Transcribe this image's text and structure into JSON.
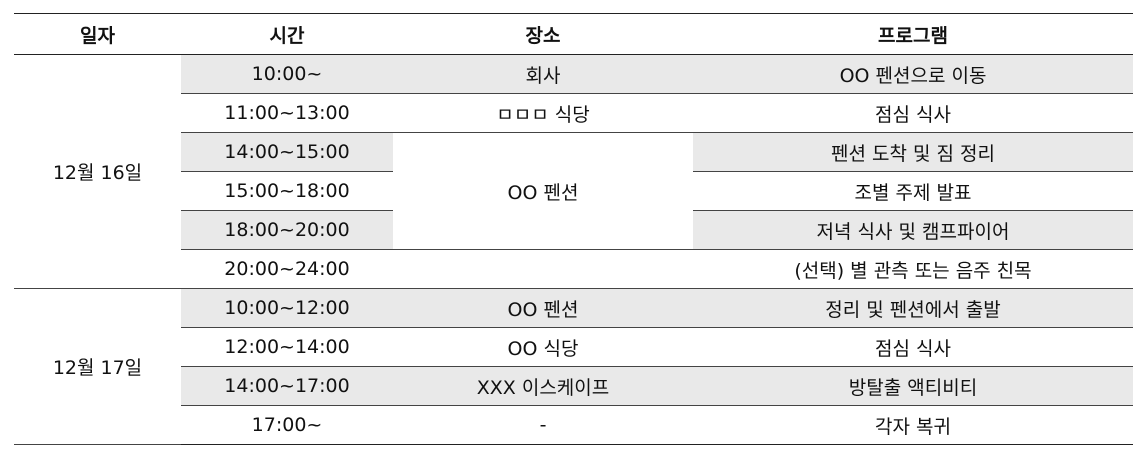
{
  "headers": {
    "date": "일자",
    "time": "시간",
    "place": "장소",
    "program": "프로그램"
  },
  "groups": [
    {
      "date": "12월 16일",
      "rows": [
        {
          "time": "10:00~",
          "place": "회사",
          "program": "OO 펜션으로 이동"
        },
        {
          "time": "11:00~13:00",
          "place": "ㅁㅁㅁ 식당",
          "program": "점심 식사"
        },
        {
          "time": "14:00~15:00",
          "place": "OO 펜션",
          "program": "펜션 도착 및 짐 정리"
        },
        {
          "time": "15:00~18:00",
          "program": "조별 주제 발표"
        },
        {
          "time": "18:00~20:00",
          "program": "저녁 식사 및 캠프파이어"
        },
        {
          "time": "20:00~24:00",
          "program": "(선택) 별 관측 또는 음주 친목"
        }
      ]
    },
    {
      "date": "12월 17일",
      "rows": [
        {
          "time": "10:00~12:00",
          "place": "OO 펜션",
          "program": "정리 및 펜션에서 출발"
        },
        {
          "time": "12:00~14:00",
          "place": "OO 식당",
          "program": "점심 식사"
        },
        {
          "time": "14:00~17:00",
          "place": "XXX 이스케이프",
          "program": "방탈출 액티비티"
        },
        {
          "time": "17:00~",
          "place": "-",
          "program": "각자 복귀"
        }
      ]
    }
  ]
}
